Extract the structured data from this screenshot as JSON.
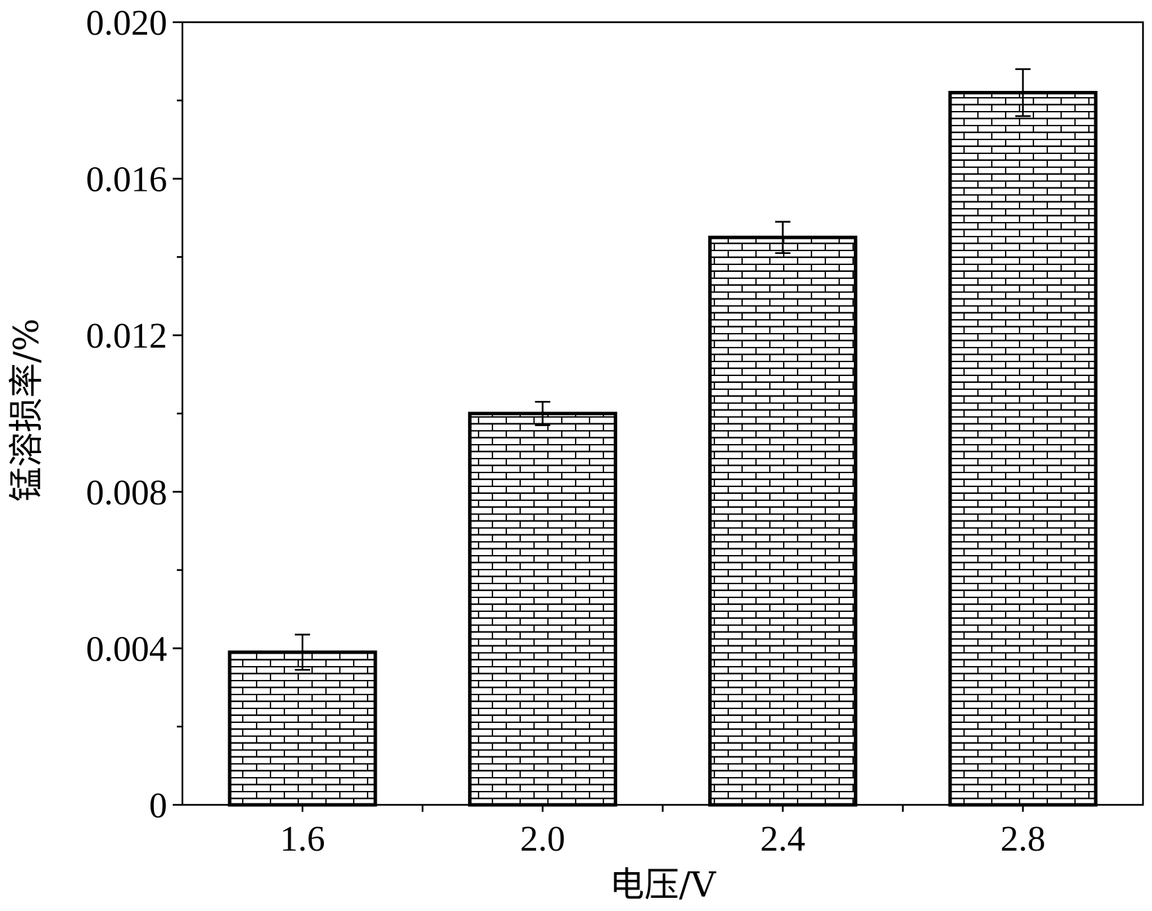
{
  "chart_data": {
    "type": "bar",
    "title": "",
    "xlabel": "电压/V",
    "ylabel": "锰溶损率/%",
    "categories": [
      "1.6",
      "2.0",
      "2.4",
      "2.8"
    ],
    "values": [
      0.0039,
      0.01,
      0.0145,
      0.0182
    ],
    "errors": [
      0.00045,
      0.0003,
      0.0004,
      0.0006
    ],
    "ylim": [
      0,
      0.02
    ],
    "yticks": [
      0,
      0.004,
      0.008,
      0.012,
      0.016,
      0.02
    ],
    "ytick_labels": [
      "0",
      "0.004",
      "0.008",
      "0.012",
      "0.016",
      "0.020"
    ],
    "grid": false,
    "legend": "none",
    "bar_pattern": "brick",
    "colors": {
      "bar_fill": "#ffffff",
      "bar_pattern": "#000000",
      "axis": "#000000"
    }
  }
}
